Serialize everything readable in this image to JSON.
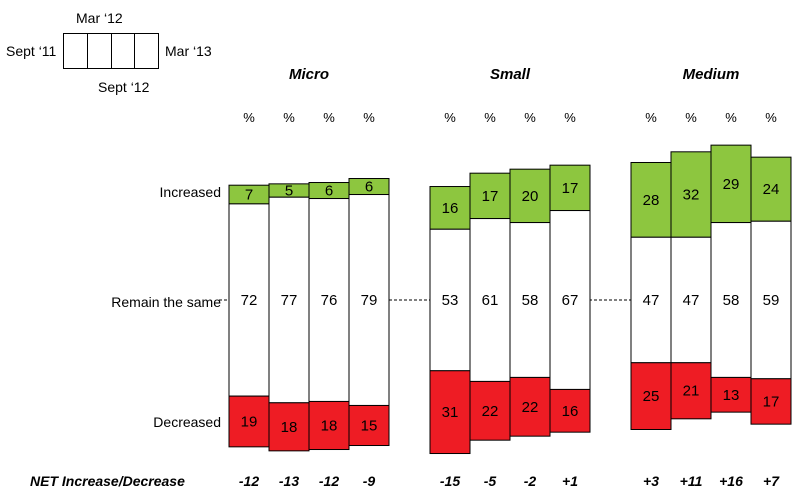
{
  "legend": {
    "waves": [
      "Sept '11",
      "Mar '12",
      "Sept '12",
      "Mar '13"
    ],
    "label_left": "Sept ‘11",
    "label_top": "Mar ‘12",
    "label_bottom": "Sept ‘12",
    "label_right": "Mar ‘13"
  },
  "rows": {
    "increased": "Increased",
    "same": "Remain the same",
    "decreased": "Decreased"
  },
  "net_label": "NET Increase/Decrease",
  "percent_symbol": "%",
  "colors": {
    "increased": "#8dc63f",
    "same": "#ffffff",
    "decreased": "#ee1c24"
  },
  "chart_data": {
    "type": "bar",
    "subtype": "stacked-100",
    "categories_order": [
      "Sept '11",
      "Mar '12",
      "Sept '12",
      "Mar '13"
    ],
    "groups": [
      {
        "name": "Micro",
        "increased": [
          7,
          5,
          6,
          6
        ],
        "same": [
          72,
          77,
          76,
          79
        ],
        "decreased": [
          19,
          18,
          18,
          15
        ],
        "net": [
          "-12",
          "-13",
          "-12",
          "-9"
        ]
      },
      {
        "name": "Small",
        "increased": [
          16,
          17,
          20,
          17
        ],
        "same": [
          53,
          61,
          58,
          67
        ],
        "decreased": [
          31,
          22,
          22,
          16
        ],
        "net": [
          "-15",
          "-5",
          "-2",
          "+1"
        ]
      },
      {
        "name": "Medium",
        "increased": [
          28,
          32,
          29,
          24
        ],
        "same": [
          47,
          47,
          58,
          59
        ],
        "decreased": [
          25,
          21,
          13,
          17
        ],
        "net": [
          "+3",
          "+11",
          "+16",
          "+7"
        ]
      }
    ]
  }
}
